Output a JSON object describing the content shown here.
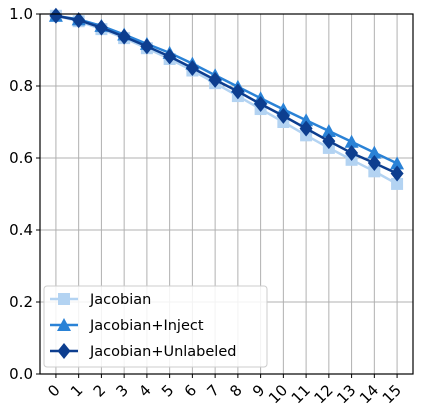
{
  "chart_data": {
    "type": "line",
    "x": [
      0,
      1,
      2,
      3,
      4,
      5,
      6,
      7,
      8,
      9,
      10,
      11,
      12,
      13,
      14,
      15
    ],
    "xticks": [
      "0",
      "1",
      "2",
      "3",
      "4",
      "5",
      "6",
      "7",
      "8",
      "9",
      "10",
      "11",
      "12",
      "13",
      "14",
      "15"
    ],
    "yticks": [
      "0.0",
      "0.2",
      "0.4",
      "0.6",
      "0.8",
      "1.0"
    ],
    "ylim": [
      0.0,
      1.0
    ],
    "grid": true,
    "legend_position": "lower-left",
    "title": "",
    "xlabel": "",
    "ylabel": "",
    "series": [
      {
        "name": "Jacobian",
        "marker": "square",
        "color": "#b3d3f2",
        "values": [
          0.995,
          0.98,
          0.958,
          0.933,
          0.905,
          0.875,
          0.843,
          0.808,
          0.772,
          0.736,
          0.7,
          0.663,
          0.628,
          0.595,
          0.563,
          0.528
        ]
      },
      {
        "name": "Jacobian+Inject",
        "marker": "triangle",
        "color": "#2a82d6",
        "values": [
          0.995,
          0.985,
          0.967,
          0.943,
          0.917,
          0.892,
          0.862,
          0.83,
          0.798,
          0.766,
          0.735,
          0.705,
          0.675,
          0.645,
          0.615,
          0.585
        ]
      },
      {
        "name": "Jacobian+Unlabeled",
        "marker": "diamond",
        "color": "#0d3e8f",
        "values": [
          0.995,
          0.983,
          0.962,
          0.937,
          0.91,
          0.882,
          0.85,
          0.817,
          0.785,
          0.75,
          0.717,
          0.682,
          0.647,
          0.614,
          0.586,
          0.557
        ]
      }
    ]
  }
}
